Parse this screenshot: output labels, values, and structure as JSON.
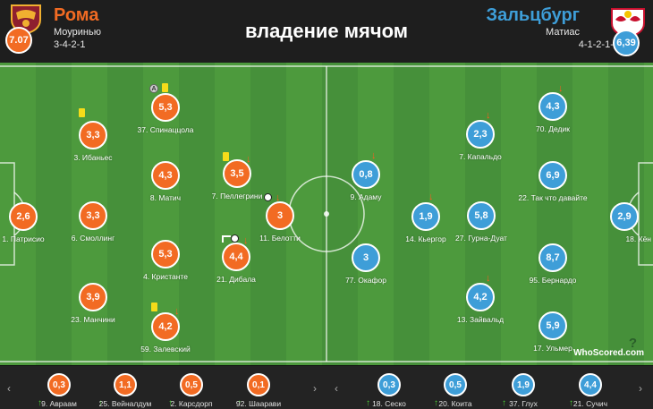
{
  "title": "владение мячом",
  "home": {
    "name": "Рома",
    "coach": "Моуринью",
    "formation": "3-4-2-1",
    "rating": "7.07",
    "color": "#f26b23"
  },
  "away": {
    "name": "Зальцбург",
    "coach": "Матиас",
    "formation": "4-1-2-1-2",
    "rating": "6,39",
    "color": "#3e9ed8"
  },
  "home_players": [
    {
      "rating": "2,6",
      "name": "1. Патрисио"
    },
    {
      "rating": "3,3",
      "name": "3. Ибаньес"
    },
    {
      "rating": "3,3",
      "name": "6. Смоллинг"
    },
    {
      "rating": "3,9",
      "name": "23. Манчини"
    },
    {
      "rating": "5,3",
      "name": "37. Спинаццола"
    },
    {
      "rating": "4,3",
      "name": "8. Матич"
    },
    {
      "rating": "5,3",
      "name": "4. Кристанте"
    },
    {
      "rating": "4,2",
      "name": "59. Залевский"
    },
    {
      "rating": "3,5",
      "name": "7. Пеллегрини"
    },
    {
      "rating": "4,4",
      "name": "21. Дибала"
    },
    {
      "rating": "3",
      "name": "11. Белотти"
    }
  ],
  "away_players": [
    {
      "rating": "2,9",
      "name": "18. Кён"
    },
    {
      "rating": "4,3",
      "name": "70. Дедик"
    },
    {
      "rating": "6,9",
      "name": "22. Так что давайте"
    },
    {
      "rating": "8,7",
      "name": "95. Бернардо"
    },
    {
      "rating": "5,9",
      "name": "17. Ульмер"
    },
    {
      "rating": "5,8",
      "name": "27. Гурна-Дуат"
    },
    {
      "rating": "2,3",
      "name": "7. Капальдо"
    },
    {
      "rating": "4,2",
      "name": "13. Зайвальд"
    },
    {
      "rating": "1,9",
      "name": "14. Кьергор"
    },
    {
      "rating": "0,8",
      "name": "9. Адаму"
    },
    {
      "rating": "3",
      "name": "77. Окафор"
    }
  ],
  "home_subs": [
    {
      "rating": "0,3",
      "name": "9. Авраам"
    },
    {
      "rating": "1,1",
      "name": "25. Вейналдум"
    },
    {
      "rating": "0,5",
      "name": "2. Карсдорп"
    },
    {
      "rating": "0,1",
      "name": "92. Шаарави"
    }
  ],
  "away_subs": [
    {
      "rating": "0,3",
      "name": "18. Сеско"
    },
    {
      "rating": "0,5",
      "name": "20. Коита"
    },
    {
      "rating": "1,9",
      "name": "37. Глух"
    },
    {
      "rating": "4,4",
      "name": "21. Сучич"
    }
  ],
  "watermark": "WhoScored.com"
}
